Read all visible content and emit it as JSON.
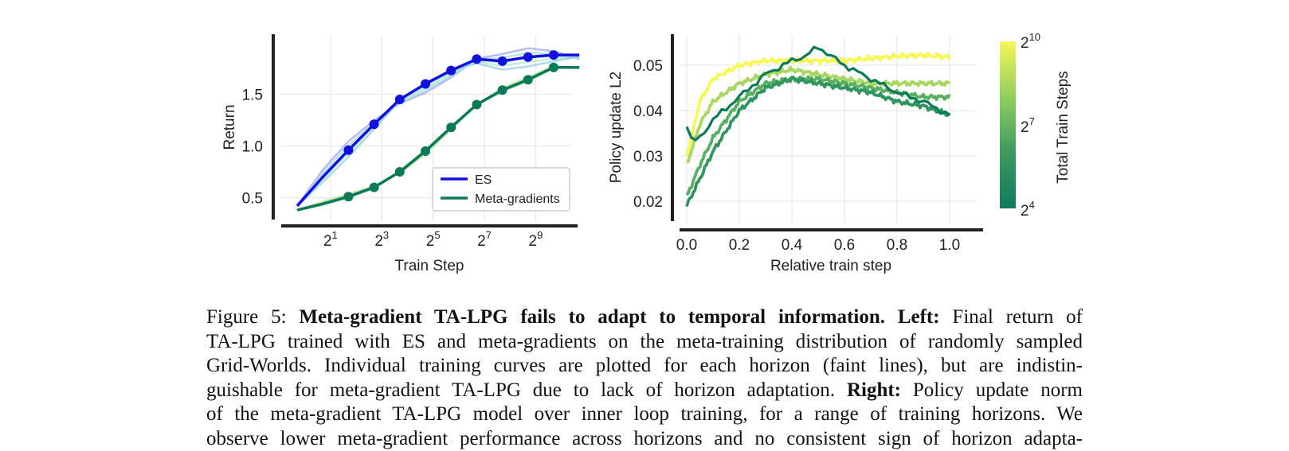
{
  "chart_data": [
    {
      "type": "line",
      "xlabel": "Train Step",
      "ylabel": "Return",
      "x_scale": "log2",
      "x_tick_labels": [
        {
          "base": "2",
          "exp": "1"
        },
        {
          "base": "2",
          "exp": "3"
        },
        {
          "base": "2",
          "exp": "5"
        },
        {
          "base": "2",
          "exp": "7"
        },
        {
          "base": "2",
          "exp": "9"
        }
      ],
      "y_tick_labels": [
        "0.5",
        "1.0",
        "1.5"
      ],
      "ylim": [
        0.25,
        2.0
      ],
      "grid": true,
      "legend_position": "lower-right",
      "legend": [
        "ES",
        "Meta-gradients"
      ],
      "series": [
        {
          "name": "ES",
          "color": "#1010e0",
          "x_log2": [
            0,
            1,
            2,
            3,
            4,
            5,
            6,
            7,
            8,
            9,
            10,
            11
          ],
          "values": [
            0.42,
            0.7,
            0.96,
            1.21,
            1.45,
            1.6,
            1.73,
            1.84,
            1.82,
            1.86,
            1.88,
            1.88
          ],
          "markers_from_index": 2
        },
        {
          "name": "Meta-gradients",
          "color": "#0a7a5a",
          "x_log2": [
            0,
            1,
            2,
            3,
            4,
            5,
            6,
            7,
            8,
            9,
            10,
            11
          ],
          "values": [
            0.38,
            0.44,
            0.51,
            0.6,
            0.75,
            0.95,
            1.18,
            1.4,
            1.54,
            1.64,
            1.76,
            1.76
          ],
          "markers_from_index": 2
        }
      ]
    },
    {
      "type": "line",
      "xlabel": "Relative train step",
      "ylabel": "Policy update L2",
      "x_tick_labels": [
        "0.0",
        "0.2",
        "0.4",
        "0.6",
        "0.8",
        "1.0"
      ],
      "y_tick_labels": [
        "0.02",
        "0.03",
        "0.04",
        "0.05"
      ],
      "xlim": [
        -0.05,
        1.05
      ],
      "ylim": [
        0.0175,
        0.0575
      ],
      "grid": true,
      "colorbar": {
        "label": "Total Train Steps",
        "ticks": [
          {
            "base": "2",
            "exp": "10"
          },
          {
            "base": "2",
            "exp": "7"
          },
          {
            "base": "2",
            "exp": "4"
          }
        ],
        "color_low": "#0e7a5e",
        "color_high": "#f7f758"
      },
      "series": [
        {
          "horizon_log2": 10,
          "color": "#f7f758",
          "x": [
            0,
            0.05,
            0.1,
            0.2,
            0.3,
            0.4,
            0.5,
            0.6,
            0.7,
            0.8,
            0.9,
            1.0
          ],
          "values": [
            0.03,
            0.042,
            0.047,
            0.05,
            0.051,
            0.051,
            0.051,
            0.051,
            0.0515,
            0.052,
            0.0522,
            0.0518
          ]
        },
        {
          "horizon_log2": 8,
          "color": "#a8d860",
          "x": [
            0,
            0.05,
            0.1,
            0.2,
            0.3,
            0.4,
            0.5,
            0.6,
            0.7,
            0.8,
            0.9,
            1.0
          ],
          "values": [
            0.028,
            0.037,
            0.042,
            0.046,
            0.048,
            0.049,
            0.048,
            0.047,
            0.046,
            0.046,
            0.046,
            0.046
          ]
        },
        {
          "horizon_log2": 6,
          "color": "#58b060",
          "x": [
            0,
            0.05,
            0.1,
            0.2,
            0.3,
            0.4,
            0.5,
            0.6,
            0.7,
            0.8,
            0.9,
            1.0
          ],
          "values": [
            0.021,
            0.028,
            0.034,
            0.042,
            0.046,
            0.047,
            0.047,
            0.046,
            0.045,
            0.044,
            0.043,
            0.043
          ]
        },
        {
          "horizon_log2": 5,
          "color": "#2f9660",
          "x": [
            0,
            0.05,
            0.1,
            0.2,
            0.3,
            0.4,
            0.5,
            0.6,
            0.7,
            0.8,
            0.9,
            1.0
          ],
          "values": [
            0.019,
            0.025,
            0.031,
            0.04,
            0.045,
            0.047,
            0.046,
            0.045,
            0.044,
            0.042,
            0.041,
            0.039
          ]
        },
        {
          "horizon_log2": 4,
          "color": "#0a7a58",
          "x": [
            0,
            0.02,
            0.05,
            0.1,
            0.2,
            0.3,
            0.4,
            0.45,
            0.5,
            0.55,
            0.6,
            0.7,
            0.8,
            0.9,
            1.0
          ],
          "values": [
            0.037,
            0.033,
            0.034,
            0.038,
            0.043,
            0.048,
            0.051,
            0.052,
            0.054,
            0.052,
            0.05,
            0.047,
            0.044,
            0.042,
            0.039
          ]
        }
      ]
    }
  ],
  "caption": {
    "label": "Figure 5:",
    "title": "Meta-gradient TA-LPG fails to adapt to temporal information.",
    "left_label": "Left:",
    "left_text_1": "Final return of",
    "line2": "TA-LPG trained with ES and meta-gradients on the meta-training distribution of randomly sampled",
    "line3": "Grid-Worlds. Individual training curves are plotted for each horizon (faint lines), but are indistin-",
    "line4_a": "guishable for meta-gradient TA-LPG due to lack of horizon adaptation.",
    "right_label": "Right:",
    "line4_b": "Policy update norm",
    "line5": "of the meta-gradient TA-LPG model over inner loop training, for a range of training horizons. We",
    "line6": "observe lower meta-gradient performance across horizons and no consistent sign of horizon adapta-"
  }
}
